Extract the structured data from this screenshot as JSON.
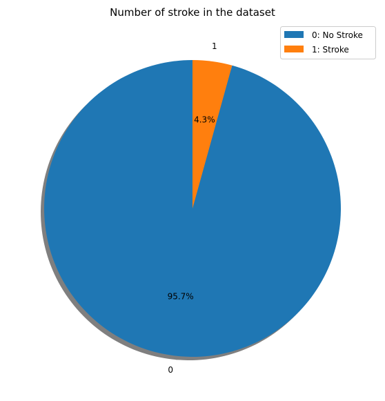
{
  "chart_data": {
    "type": "pie",
    "title": "Number of stroke in the dataset",
    "categories": [
      "0",
      "1"
    ],
    "values": [
      95.7,
      4.3
    ],
    "percent_labels": [
      "95.7%",
      "4.3%"
    ],
    "colors": [
      "#1f77b4",
      "#ff7f0e"
    ],
    "legend": {
      "placement": "top-right",
      "entries": [
        "0: No Stroke",
        "1: Stroke"
      ]
    },
    "shadow": true,
    "start_angle_deg": 90,
    "direction": "counterclockwise"
  }
}
